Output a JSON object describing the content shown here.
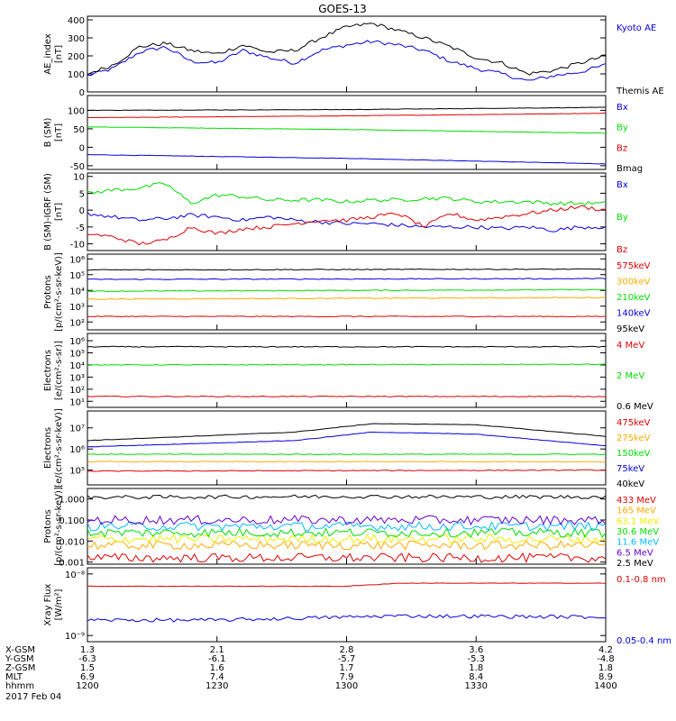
{
  "title": "GOES-13",
  "date_label": "2017 Feb 04",
  "colors": {
    "black": "#000000",
    "blue": "#0000dd",
    "green": "#00dd00",
    "red": "#dd0000",
    "orange": "#ffaa00",
    "yellow": "#eeee00",
    "cyan": "#00bbff",
    "purple": "#6600cc"
  },
  "chart_data": [
    {
      "id": "ae",
      "type": "line",
      "ylabel": [
        "AE_index",
        "[nT]"
      ],
      "ylim": [
        0,
        420
      ],
      "scale": "linear",
      "ticks": [
        {
          "v": 0,
          "t": "0"
        },
        {
          "v": 100,
          "t": "100"
        },
        {
          "v": 200,
          "t": "200"
        },
        {
          "v": 300,
          "t": "300"
        },
        {
          "v": 400,
          "t": "400"
        }
      ],
      "series": [
        {
          "name": "Kyoto AE",
          "color": "#0000dd",
          "shape": "fluct",
          "x": [
            0,
            0.05,
            0.1,
            0.15,
            0.2,
            0.25,
            0.3,
            0.35,
            0.4,
            0.45,
            0.5,
            0.55,
            0.6,
            0.65,
            0.7,
            0.75,
            0.8,
            0.85,
            0.9,
            0.95,
            1.0
          ],
          "y": [
            90,
            130,
            220,
            250,
            170,
            160,
            230,
            190,
            160,
            230,
            260,
            280,
            260,
            230,
            170,
            130,
            100,
            60,
            90,
            110,
            150
          ]
        },
        {
          "name": "Themis AE",
          "color": "#000000",
          "shape": "fluct",
          "x": [
            0,
            0.05,
            0.1,
            0.15,
            0.2,
            0.25,
            0.3,
            0.35,
            0.4,
            0.45,
            0.5,
            0.55,
            0.6,
            0.65,
            0.7,
            0.75,
            0.8,
            0.85,
            0.9,
            0.95,
            1.0
          ],
          "y": [
            100,
            150,
            250,
            270,
            230,
            210,
            260,
            220,
            230,
            300,
            360,
            380,
            340,
            300,
            250,
            190,
            160,
            100,
            120,
            160,
            200
          ]
        }
      ]
    },
    {
      "id": "b",
      "type": "line",
      "ylabel": [
        "B (SM)",
        "[nT]"
      ],
      "ylim": [
        -60,
        140
      ],
      "scale": "linear",
      "ticks": [
        {
          "v": -50,
          "t": "-50"
        },
        {
          "v": 0,
          "t": "0"
        },
        {
          "v": 50,
          "t": "50"
        },
        {
          "v": 100,
          "t": "100"
        }
      ],
      "series": [
        {
          "name": "Bx",
          "color": "#0000dd",
          "shape": "smooth",
          "x": [
            0,
            0.5,
            1.0
          ],
          "y": [
            -20,
            -30,
            -45
          ]
        },
        {
          "name": "By",
          "color": "#00dd00",
          "shape": "smooth",
          "x": [
            0,
            0.5,
            1.0
          ],
          "y": [
            55,
            48,
            38
          ]
        },
        {
          "name": "Bz",
          "color": "#dd0000",
          "shape": "smooth",
          "x": [
            0,
            0.5,
            1.0
          ],
          "y": [
            80,
            85,
            92
          ]
        },
        {
          "name": "Bmag",
          "color": "#000000",
          "shape": "smooth",
          "x": [
            0,
            0.5,
            1.0
          ],
          "y": [
            100,
            102,
            108
          ]
        }
      ]
    },
    {
      "id": "dbigrf",
      "type": "line",
      "ylabel": [
        "B (SM)-IGRF (SM)",
        "[nT]"
      ],
      "ylim": [
        -12,
        11
      ],
      "scale": "linear",
      "ticks": [
        {
          "v": -10,
          "t": "-10"
        },
        {
          "v": -5,
          "t": "-5"
        },
        {
          "v": 0,
          "t": "0"
        },
        {
          "v": 5,
          "t": "5"
        },
        {
          "v": 10,
          "t": "10"
        }
      ],
      "series": [
        {
          "name": "Bx",
          "color": "#0000dd",
          "shape": "fluct",
          "x": [
            0,
            0.05,
            0.1,
            0.15,
            0.2,
            0.25,
            0.3,
            0.35,
            0.4,
            0.45,
            0.5,
            0.55,
            0.6,
            0.65,
            0.7,
            0.75,
            0.8,
            0.85,
            0.9,
            0.95,
            1.0
          ],
          "y": [
            -1,
            -2,
            -3,
            -2.5,
            -1.5,
            -2,
            -3,
            -2,
            -3,
            -3.5,
            -4,
            -4,
            -4.5,
            -5,
            -5,
            -5,
            -5.5,
            -5,
            -6,
            -5,
            -5
          ]
        },
        {
          "name": "By",
          "color": "#00dd00",
          "shape": "fluct",
          "x": [
            0,
            0.05,
            0.1,
            0.15,
            0.2,
            0.25,
            0.3,
            0.35,
            0.4,
            0.45,
            0.5,
            0.55,
            0.6,
            0.65,
            0.7,
            0.75,
            0.8,
            0.85,
            0.9,
            0.95,
            1.0
          ],
          "y": [
            5,
            6,
            6.5,
            8,
            2,
            4.5,
            4,
            3,
            3,
            3,
            2.5,
            3,
            3,
            3.5,
            3.5,
            2.5,
            2.5,
            2.5,
            2,
            2,
            2
          ]
        },
        {
          "name": "Bz",
          "color": "#dd0000",
          "shape": "fluct",
          "x": [
            0,
            0.05,
            0.1,
            0.15,
            0.2,
            0.25,
            0.3,
            0.35,
            0.4,
            0.45,
            0.5,
            0.55,
            0.6,
            0.65,
            0.7,
            0.75,
            0.8,
            0.85,
            0.9,
            0.95,
            1.0
          ],
          "y": [
            -7,
            -8,
            -10,
            -9,
            -5,
            -7,
            -5.5,
            -5,
            -4,
            -3,
            -3,
            -2,
            -1,
            -5,
            -1,
            -3,
            -2,
            -1,
            0,
            1,
            0
          ]
        }
      ]
    },
    {
      "id": "protons",
      "type": "line",
      "ylabel": [
        "Protons",
        "[p/(cm²-s-sr-keV)]"
      ],
      "ylim": [
        1.5,
        6.3
      ],
      "scale": "log",
      "ticks": [
        {
          "v": 2,
          "t": "10²"
        },
        {
          "v": 3,
          "t": "10³"
        },
        {
          "v": 4,
          "t": "10⁴"
        },
        {
          "v": 5,
          "t": "10⁵"
        },
        {
          "v": 6,
          "t": "10⁶"
        }
      ],
      "series": [
        {
          "name": "575keV",
          "color": "#dd0000",
          "shape": "flat",
          "x": [
            0,
            1.0
          ],
          "y": [
            2.35,
            2.35
          ]
        },
        {
          "name": "300keV",
          "color": "#ffaa00",
          "shape": "flat",
          "x": [
            0,
            1.0
          ],
          "y": [
            3.45,
            3.55
          ]
        },
        {
          "name": "210keV",
          "color": "#00dd00",
          "shape": "flat",
          "x": [
            0,
            1.0
          ],
          "y": [
            3.95,
            4.05
          ]
        },
        {
          "name": "140keV",
          "color": "#0000dd",
          "shape": "flat",
          "x": [
            0,
            1.0
          ],
          "y": [
            4.7,
            4.75
          ]
        },
        {
          "name": "95keV",
          "color": "#000000",
          "shape": "flat",
          "x": [
            0,
            1.0
          ],
          "y": [
            5.3,
            5.35
          ]
        }
      ]
    },
    {
      "id": "electrons1",
      "type": "line",
      "ylabel": [
        "Electrons",
        "[e/(cm²-s-sr)]"
      ],
      "ylim": [
        0.5,
        6.6
      ],
      "scale": "log",
      "ticks": [
        {
          "v": 1,
          "t": "10¹"
        },
        {
          "v": 2,
          "t": "10²"
        },
        {
          "v": 3,
          "t": "10³"
        },
        {
          "v": 4,
          "t": "10⁴"
        },
        {
          "v": 5,
          "t": "10⁵"
        },
        {
          "v": 6,
          "t": "10⁶"
        }
      ],
      "series": [
        {
          "name": "4 MeV",
          "color": "#dd0000",
          "shape": "flat",
          "x": [
            0,
            1.0
          ],
          "y": [
            1.4,
            1.4
          ]
        },
        {
          "name": "2 MeV",
          "color": "#00dd00",
          "shape": "flat",
          "x": [
            0,
            1.0
          ],
          "y": [
            4.0,
            4.05
          ]
        },
        {
          "name": "0.6 MeV",
          "color": "#000000",
          "shape": "flat",
          "x": [
            0,
            1.0
          ],
          "y": [
            5.5,
            5.5
          ]
        }
      ]
    },
    {
      "id": "electrons2",
      "type": "line",
      "ylabel": [
        "Electrons",
        "[e/(cm²-s-sr-keV)]"
      ],
      "ylim": [
        4.3,
        7.8
      ],
      "scale": "log",
      "ticks": [
        {
          "v": 5,
          "t": "10⁵"
        },
        {
          "v": 6,
          "t": "10⁶"
        },
        {
          "v": 7,
          "t": "10⁷"
        }
      ],
      "series": [
        {
          "name": "475keV",
          "color": "#dd0000",
          "shape": "flat",
          "x": [
            0,
            1.0
          ],
          "y": [
            4.95,
            5.0
          ]
        },
        {
          "name": "275keV",
          "color": "#ffaa00",
          "shape": "flat",
          "x": [
            0,
            1.0
          ],
          "y": [
            5.4,
            5.4
          ]
        },
        {
          "name": "150keV",
          "color": "#00dd00",
          "shape": "flat",
          "x": [
            0,
            1.0
          ],
          "y": [
            5.75,
            5.75
          ]
        },
        {
          "name": "75keV",
          "color": "#0000dd",
          "shape": "smooth",
          "x": [
            0,
            0.4,
            0.55,
            0.75,
            1.0
          ],
          "y": [
            6.1,
            6.4,
            6.8,
            6.7,
            6.15
          ]
        },
        {
          "name": "40keV",
          "color": "#000000",
          "shape": "smooth",
          "x": [
            0,
            0.4,
            0.55,
            0.75,
            1.0
          ],
          "y": [
            6.4,
            6.8,
            7.2,
            7.15,
            6.6
          ]
        }
      ]
    },
    {
      "id": "protons_hi",
      "type": "line",
      "ylabel": [
        "Protons",
        "[p/(cm²-s-sr-keV)]"
      ],
      "ylim": [
        -3.1,
        0.5
      ],
      "scale": "log",
      "ticks": [
        {
          "v": -3,
          "t": "0.001"
        },
        {
          "v": -2,
          "t": "0.010"
        },
        {
          "v": -1,
          "t": "0.100"
        },
        {
          "v": 0,
          "t": "1.000"
        }
      ],
      "series": [
        {
          "name": "433 MeV",
          "color": "#dd0000",
          "shape": "noisy",
          "x": [
            0,
            1.0
          ],
          "y": [
            -2.8,
            -2.8
          ]
        },
        {
          "name": "165 MeV",
          "color": "#ffaa00",
          "shape": "noisy",
          "x": [
            0,
            1.0
          ],
          "y": [
            -2.2,
            -2.2
          ]
        },
        {
          "name": "63.1 MeV",
          "color": "#eeee00",
          "shape": "noisy",
          "x": [
            0,
            1.0
          ],
          "y": [
            -1.9,
            -1.9
          ]
        },
        {
          "name": "30.6 MeV",
          "color": "#00dd00",
          "shape": "noisy",
          "x": [
            0,
            1.0
          ],
          "y": [
            -1.6,
            -1.6
          ]
        },
        {
          "name": "11.6 MeV",
          "color": "#00bbff",
          "shape": "noisy",
          "x": [
            0,
            1.0
          ],
          "y": [
            -1.3,
            -1.3
          ]
        },
        {
          "name": "6.5 MeV",
          "color": "#6600cc",
          "shape": "noisy",
          "x": [
            0,
            1.0
          ],
          "y": [
            -1.0,
            -1.0
          ]
        },
        {
          "name": "2.5 MeV",
          "color": "#000000",
          "shape": "fluct",
          "x": [
            0,
            0.25,
            0.5,
            0.75,
            1.0
          ],
          "y": [
            0.08,
            0.1,
            0.12,
            0.1,
            0.1
          ]
        }
      ]
    },
    {
      "id": "xray",
      "type": "line",
      "ylabel": [
        "Xray Flux",
        "[W/m²]"
      ],
      "ylim": [
        -9.1,
        -7.9
      ],
      "scale": "log",
      "ticks": [
        {
          "v": -9,
          "t": "10⁻⁹"
        },
        {
          "v": -8,
          "t": "10⁻⁸"
        }
      ],
      "series": [
        {
          "name": "0.1-0.8 nm",
          "color": "#dd0000",
          "shape": "smooth",
          "x": [
            0,
            0.5,
            0.6,
            1.0
          ],
          "y": [
            -8.2,
            -8.2,
            -8.15,
            -8.15
          ]
        },
        {
          "name": "0.05-0.4 nm",
          "color": "#0000dd",
          "shape": "fluct",
          "x": [
            0,
            0.25,
            0.5,
            0.6,
            1.0
          ],
          "y": [
            -8.75,
            -8.75,
            -8.7,
            -8.68,
            -8.7
          ]
        }
      ]
    }
  ],
  "x_axis": {
    "ticks": [
      {
        "x": 0,
        "rows": [
          "1.3",
          "-6.3",
          "1.5",
          "6.9",
          "1200"
        ]
      },
      {
        "x": 0.25,
        "rows": [
          "2.1",
          "-6.1",
          "1.6",
          "7.4",
          "1230"
        ]
      },
      {
        "x": 0.5,
        "rows": [
          "2.8",
          "-5.7",
          "1.7",
          "7.9",
          "1300"
        ]
      },
      {
        "x": 0.75,
        "rows": [
          "3.6",
          "-5.3",
          "1.8",
          "8.4",
          "1330"
        ]
      },
      {
        "x": 1.0,
        "rows": [
          "4.2",
          "-4.8",
          "1.8",
          "8.9",
          "1400"
        ]
      }
    ],
    "row_labels": [
      "X-GSM",
      "Y-GSM",
      "Z-GSM",
      "MLT",
      "hhmm"
    ]
  }
}
